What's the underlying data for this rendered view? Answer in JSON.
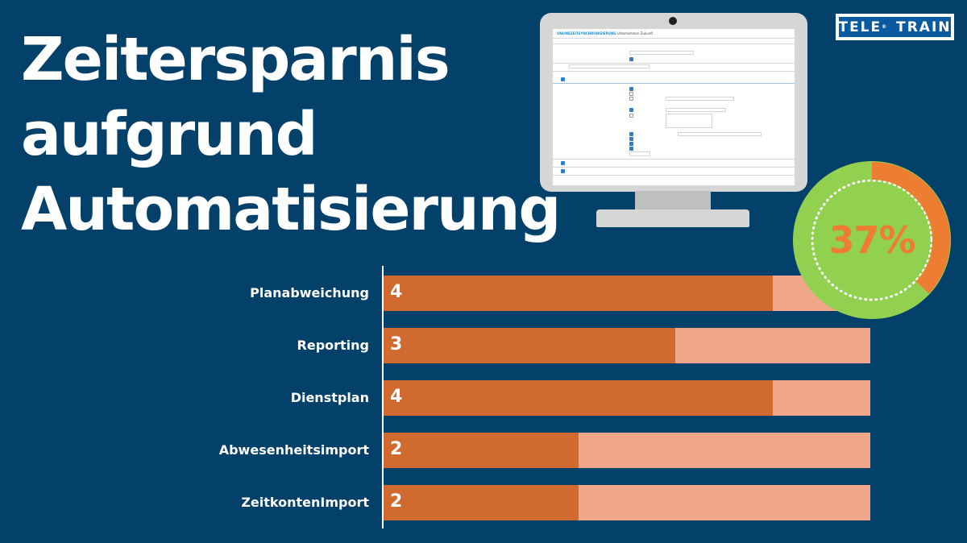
{
  "headline": {
    "line1": "Zeitersparnis",
    "line2": "aufgrund",
    "line3": "Automatisierung"
  },
  "logo": {
    "left": "TELE",
    "right": "TRAIN",
    "mark": "®"
  },
  "gauge": {
    "label": "37%",
    "value": 0.37,
    "ring_color": "#92d050",
    "arc_color": "#ed7d31",
    "text_color": "#ed7d31"
  },
  "screen": {
    "title_app": "ONLINEZEITSYNCHRONISIERUNG",
    "title_org": "Unternehmen Zukunft"
  },
  "colors": {
    "background": "#04416a",
    "bar_value": "#d06a2e",
    "bar_remainder": "#f0a78a"
  },
  "chart_data": {
    "type": "bar",
    "orientation": "horizontal",
    "stacked_against_max": true,
    "categories": [
      "Planabweichung",
      "Reporting",
      "Dienstplan",
      "Abwesenheitsimport",
      "ZeitkontenImport"
    ],
    "values": [
      4,
      3,
      4,
      2,
      2
    ],
    "value_labels": [
      "4",
      "3",
      "4",
      "2",
      "2"
    ],
    "xlim": [
      0,
      5
    ],
    "title": "",
    "xlabel": "",
    "ylabel": "",
    "grid": false,
    "legend": false
  }
}
